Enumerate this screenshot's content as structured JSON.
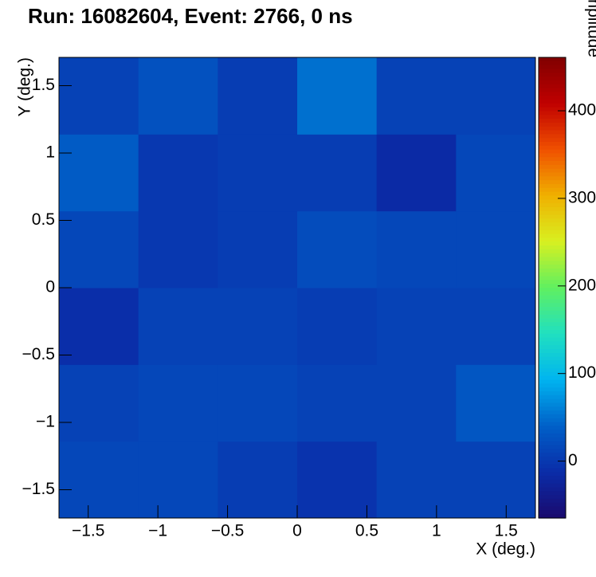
{
  "chart_data": {
    "type": "heatmap",
    "title": "Run: 16082604, Event: 2766, 0 ns",
    "x_label": "X (deg.)",
    "y_label": "Y (deg.)",
    "z_label": "Amplitude",
    "xbins": [
      -1.71,
      -1.14,
      -0.57,
      0,
      0.57,
      1.14,
      1.71
    ],
    "ybins": [
      -1.71,
      -1.14,
      -0.57,
      0,
      0.57,
      1.14,
      1.71
    ],
    "xlim": [
      -1.71,
      1.71
    ],
    "ylim": [
      -1.71,
      1.71
    ],
    "zlim": [
      -65,
      461
    ],
    "xticks": [
      {
        "value": -1.5,
        "label": "−1.5"
      },
      {
        "value": -1,
        "label": "−1"
      },
      {
        "value": -0.5,
        "label": "−0.5"
      },
      0,
      0.5,
      1,
      1.5
    ],
    "yticks": [
      {
        "value": -1.5,
        "label": "−1.5"
      },
      {
        "value": -1,
        "label": "−1"
      },
      {
        "value": -0.5,
        "label": "−0.5"
      },
      0,
      0.5,
      1,
      1.5
    ],
    "zticks": [
      0,
      100,
      200,
      300,
      400
    ],
    "colormap": [
      "#1a0a6e",
      "#0a2ca8",
      "#0060c8",
      "#00b4f0",
      "#20e0c0",
      "#60f060",
      "#d8f020",
      "#f0b000",
      "#f05000",
      "#c00000",
      "#800000"
    ],
    "values": [
      [
        15,
        15,
        5,
        -5,
        10,
        10
      ],
      [
        10,
        15,
        15,
        10,
        10,
        30
      ],
      [
        -10,
        10,
        10,
        5,
        10,
        10
      ],
      [
        15,
        0,
        5,
        20,
        15,
        15
      ],
      [
        35,
        0,
        5,
        5,
        -15,
        15
      ],
      [
        10,
        25,
        5,
        50,
        10,
        10
      ]
    ]
  }
}
